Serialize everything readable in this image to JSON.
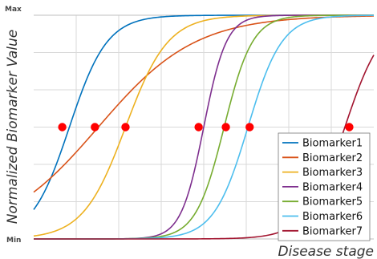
{
  "chart_data": {
    "type": "line",
    "xlabel": "Disease stage",
    "ylabel": "Normalized Biomarker Value",
    "y_ticks": [
      "Min",
      "Max"
    ],
    "xlim": [
      0,
      1
    ],
    "ylim": [
      0,
      1
    ],
    "grid": true,
    "legend_position": "bottom-right",
    "series": [
      {
        "name": "Biomarker1",
        "color": "#0072BD",
        "midpoint": 0.105,
        "steepness": 18,
        "marker": {
          "x": 0.084,
          "y": 0.5
        }
      },
      {
        "name": "Biomarker2",
        "color": "#D95319",
        "midpoint": 0.19,
        "steepness": 7,
        "marker": {
          "x": 0.18,
          "y": 0.5
        }
      },
      {
        "name": "Biomarker3",
        "color": "#EDB120",
        "midpoint": 0.27,
        "steepness": 16,
        "marker": {
          "x": 0.27,
          "y": 0.5
        }
      },
      {
        "name": "Biomarker4",
        "color": "#7E2F8E",
        "midpoint": 0.5,
        "steepness": 30,
        "marker": {
          "x": 0.485,
          "y": 0.5
        }
      },
      {
        "name": "Biomarker5",
        "color": "#77AC30",
        "midpoint": 0.56,
        "steepness": 24,
        "marker": {
          "x": 0.565,
          "y": 0.5
        }
      },
      {
        "name": "Biomarker6",
        "color": "#4DBEEE",
        "midpoint": 0.63,
        "steepness": 20,
        "marker": {
          "x": 0.635,
          "y": 0.5
        }
      },
      {
        "name": "Biomarker7",
        "color": "#A2142F",
        "midpoint": 0.915,
        "steepness": 18,
        "marker": {
          "x": 0.928,
          "y": 0.5
        }
      }
    ],
    "marker_color": "#ff0000"
  }
}
